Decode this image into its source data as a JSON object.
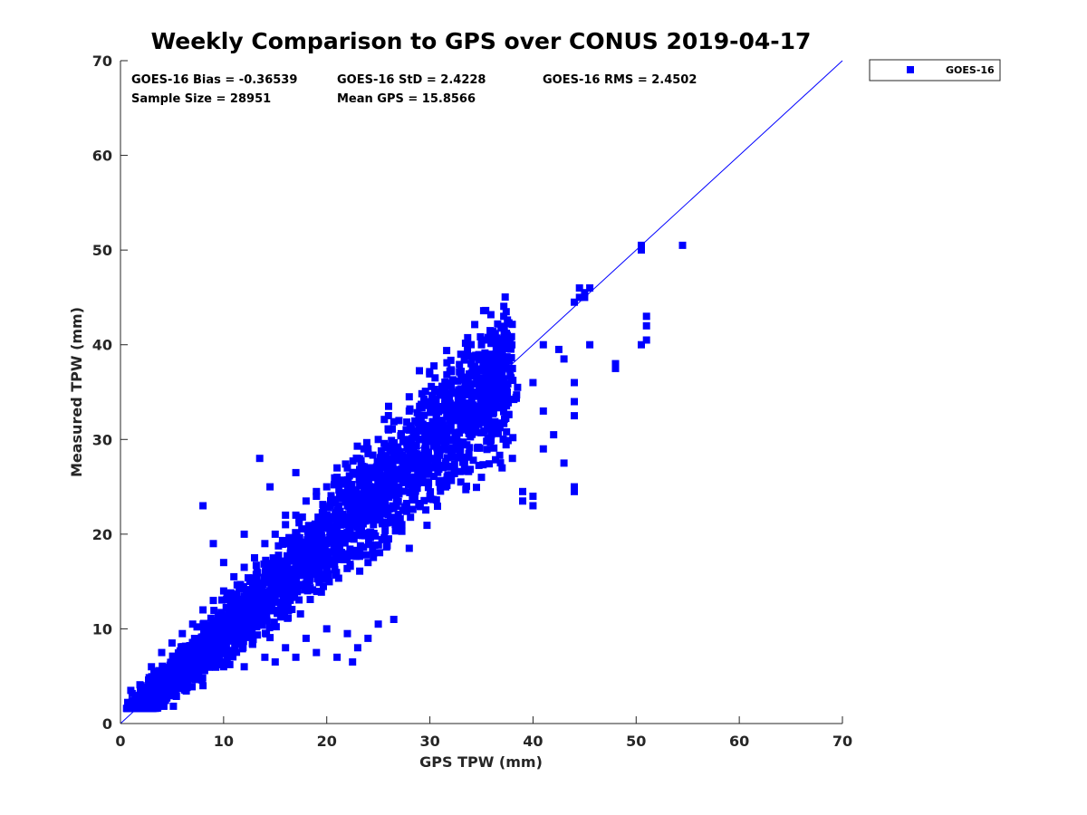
{
  "chart_data": {
    "type": "scatter",
    "title": "Weekly Comparison to GPS over CONUS 2019-04-17",
    "xlabel": "GPS TPW (mm)",
    "ylabel": "Measured TPW (mm)",
    "xlim": [
      0,
      70
    ],
    "ylim": [
      0,
      70
    ],
    "xticks": [
      0,
      10,
      20,
      30,
      40,
      50,
      60,
      70
    ],
    "yticks": [
      0,
      10,
      20,
      30,
      40,
      50,
      60,
      70
    ],
    "grid": false,
    "legend_position": "top-right outside",
    "series": [
      {
        "name": "GOES-16",
        "color": "#0000ff",
        "marker": "square",
        "points_note": "representative subset of 28951 samples",
        "points": [
          [
            1.0,
            3.5
          ],
          [
            1.5,
            2.5
          ],
          [
            2.0,
            4.0
          ],
          [
            2.5,
            3.0
          ],
          [
            3.0,
            4.5
          ],
          [
            3.5,
            3.5
          ],
          [
            4.0,
            5.0
          ],
          [
            4.5,
            4.0
          ],
          [
            5.0,
            6.0
          ],
          [
            5.5,
            5.0
          ],
          [
            6.0,
            7.0
          ],
          [
            6.5,
            6.0
          ],
          [
            7.0,
            8.0
          ],
          [
            7.5,
            7.0
          ],
          [
            8.0,
            9.0
          ],
          [
            8.5,
            8.0
          ],
          [
            9.0,
            10.0
          ],
          [
            9.5,
            9.0
          ],
          [
            10.0,
            11.0
          ],
          [
            10.5,
            10.0
          ],
          [
            11.0,
            12.0
          ],
          [
            11.5,
            11.0
          ],
          [
            12.0,
            13.0
          ],
          [
            12.5,
            12.0
          ],
          [
            13.0,
            14.0
          ],
          [
            13.5,
            13.0
          ],
          [
            14.0,
            15.0
          ],
          [
            14.5,
            14.0
          ],
          [
            15.0,
            16.0
          ],
          [
            15.5,
            15.0
          ],
          [
            16.0,
            17.0
          ],
          [
            16.5,
            16.0
          ],
          [
            17.0,
            18.0
          ],
          [
            17.5,
            17.0
          ],
          [
            18.0,
            19.0
          ],
          [
            18.5,
            18.0
          ],
          [
            19.0,
            20.0
          ],
          [
            19.5,
            19.0
          ],
          [
            20.0,
            21.0
          ],
          [
            20.5,
            20.0
          ],
          [
            21.0,
            22.0
          ],
          [
            21.5,
            21.0
          ],
          [
            22.0,
            23.0
          ],
          [
            22.5,
            22.0
          ],
          [
            23.0,
            24.0
          ],
          [
            23.5,
            23.0
          ],
          [
            24.0,
            25.0
          ],
          [
            24.5,
            24.0
          ],
          [
            25.0,
            26.0
          ],
          [
            25.5,
            25.0
          ],
          [
            26.0,
            27.0
          ],
          [
            26.5,
            26.0
          ],
          [
            27.0,
            28.0
          ],
          [
            27.5,
            27.0
          ],
          [
            28.0,
            29.0
          ],
          [
            28.5,
            28.0
          ],
          [
            29.0,
            30.0
          ],
          [
            29.5,
            29.0
          ],
          [
            30.0,
            31.0
          ],
          [
            30.5,
            30.0
          ],
          [
            31.0,
            32.0
          ],
          [
            31.5,
            31.0
          ],
          [
            32.0,
            33.0
          ],
          [
            32.5,
            32.0
          ],
          [
            33.0,
            34.0
          ],
          [
            33.5,
            33.0
          ],
          [
            34.0,
            35.0
          ],
          [
            34.5,
            33.5
          ],
          [
            35.0,
            35.0
          ],
          [
            35.5,
            34.0
          ],
          [
            36.0,
            36.0
          ],
          [
            36.5,
            34.5
          ],
          [
            37.0,
            37.0
          ],
          [
            37.5,
            35.0
          ],
          [
            38.0,
            37.5
          ],
          [
            38.5,
            35.5
          ],
          [
            2.0,
            2.0
          ],
          [
            3.0,
            2.5
          ],
          [
            4.0,
            3.5
          ],
          [
            5.0,
            4.5
          ],
          [
            6.0,
            5.0
          ],
          [
            7.0,
            6.0
          ],
          [
            8.0,
            7.0
          ],
          [
            9.0,
            8.0
          ],
          [
            10.0,
            9.0
          ],
          [
            11.0,
            10.0
          ],
          [
            12.0,
            11.0
          ],
          [
            13.0,
            12.0
          ],
          [
            14.0,
            13.0
          ],
          [
            15.0,
            14.0
          ],
          [
            16.0,
            15.0
          ],
          [
            17.0,
            16.0
          ],
          [
            18.0,
            17.0
          ],
          [
            19.0,
            18.0
          ],
          [
            20.0,
            19.0
          ],
          [
            21.0,
            20.0
          ],
          [
            22.0,
            21.0
          ],
          [
            23.0,
            22.0
          ],
          [
            24.0,
            23.0
          ],
          [
            25.0,
            24.0
          ],
          [
            26.0,
            24.5
          ],
          [
            27.0,
            25.0
          ],
          [
            28.0,
            26.0
          ],
          [
            29.0,
            27.0
          ],
          [
            30.0,
            28.0
          ],
          [
            31.0,
            29.0
          ],
          [
            32.0,
            30.0
          ],
          [
            33.0,
            31.0
          ],
          [
            34.0,
            32.0
          ],
          [
            35.0,
            32.5
          ],
          [
            36.0,
            33.0
          ],
          [
            37.0,
            33.5
          ],
          [
            3.0,
            6.0
          ],
          [
            4.0,
            7.5
          ],
          [
            5.0,
            8.5
          ],
          [
            6.0,
            9.5
          ],
          [
            7.0,
            10.5
          ],
          [
            8.0,
            12.0
          ],
          [
            9.0,
            13.0
          ],
          [
            10.0,
            14.0
          ],
          [
            11.0,
            15.5
          ],
          [
            12.0,
            16.5
          ],
          [
            13.0,
            17.5
          ],
          [
            14.0,
            19.0
          ],
          [
            15.0,
            20.0
          ],
          [
            16.0,
            21.0
          ],
          [
            17.0,
            22.0
          ],
          [
            18.0,
            23.5
          ],
          [
            19.0,
            24.0
          ],
          [
            20.0,
            25.0
          ],
          [
            21.0,
            26.0
          ],
          [
            22.0,
            27.0
          ],
          [
            23.0,
            28.0
          ],
          [
            24.0,
            29.0
          ],
          [
            25.0,
            30.0
          ],
          [
            26.0,
            31.0
          ],
          [
            27.0,
            32.0
          ],
          [
            28.0,
            33.0
          ],
          [
            29.0,
            33.5
          ],
          [
            30.0,
            34.0
          ],
          [
            31.0,
            35.0
          ],
          [
            32.0,
            36.0
          ],
          [
            33.0,
            37.0
          ],
          [
            34.0,
            38.0
          ],
          [
            35.0,
            38.5
          ],
          [
            36.0,
            39.0
          ],
          [
            37.0,
            40.0
          ],
          [
            37.5,
            41.0
          ],
          [
            33.0,
            39.0
          ],
          [
            30.5,
            36.5
          ],
          [
            8.0,
            23.0
          ],
          [
            9.0,
            19.0
          ],
          [
            10.0,
            17.0
          ],
          [
            12.0,
            20.0
          ],
          [
            13.5,
            28.0
          ],
          [
            14.5,
            25.0
          ],
          [
            16.0,
            22.0
          ],
          [
            17.0,
            26.5
          ],
          [
            19.0,
            24.5
          ],
          [
            21.0,
            27.0
          ],
          [
            24.0,
            28.5
          ],
          [
            26.0,
            33.5
          ],
          [
            28.0,
            34.5
          ],
          [
            35.0,
            40.0
          ],
          [
            36.0,
            40.5
          ],
          [
            8.0,
            4.0
          ],
          [
            10.0,
            6.0
          ],
          [
            12.0,
            6.0
          ],
          [
            14.0,
            7.0
          ],
          [
            15.0,
            6.5
          ],
          [
            16.0,
            8.0
          ],
          [
            17.0,
            7.0
          ],
          [
            18.0,
            9.0
          ],
          [
            19.0,
            7.5
          ],
          [
            20.0,
            10.0
          ],
          [
            21.0,
            7.0
          ],
          [
            22.0,
            9.5
          ],
          [
            22.5,
            6.5
          ],
          [
            23.0,
            8.0
          ],
          [
            24.0,
            9.0
          ],
          [
            25.0,
            10.5
          ],
          [
            26.5,
            11.0
          ],
          [
            24.0,
            17.0
          ],
          [
            26.0,
            19.5
          ],
          [
            28.0,
            18.5
          ],
          [
            30.0,
            24.0
          ],
          [
            31.0,
            25.0
          ],
          [
            33.0,
            25.5
          ],
          [
            35.0,
            26.0
          ],
          [
            37.0,
            27.0
          ],
          [
            38.0,
            28.0
          ],
          [
            39.0,
            24.5
          ],
          [
            40.0,
            24.0
          ],
          [
            39.0,
            23.5
          ],
          [
            40.0,
            23.0
          ],
          [
            41.0,
            29.0
          ],
          [
            42.0,
            30.5
          ],
          [
            43.0,
            27.5
          ],
          [
            44.0,
            32.5
          ],
          [
            44.0,
            34.0
          ],
          [
            44.0,
            25.0
          ],
          [
            44.0,
            24.5
          ],
          [
            41.0,
            40.0
          ],
          [
            42.5,
            39.5
          ],
          [
            43.0,
            38.5
          ],
          [
            44.0,
            36.0
          ],
          [
            40.0,
            36.0
          ],
          [
            41.0,
            33.0
          ],
          [
            45.5,
            40.0
          ],
          [
            48.0,
            38.0
          ],
          [
            48.0,
            37.5
          ],
          [
            44.0,
            44.5
          ],
          [
            44.5,
            46.0
          ],
          [
            45.0,
            45.5
          ],
          [
            45.5,
            46.0
          ],
          [
            44.5,
            45.0
          ],
          [
            45.0,
            45.0
          ],
          [
            50.5,
            40.0
          ],
          [
            51.0,
            40.5
          ],
          [
            51.0,
            42.0
          ],
          [
            51.0,
            43.0
          ],
          [
            50.5,
            50.0
          ],
          [
            50.5,
            50.5
          ],
          [
            54.5,
            50.5
          ]
        ]
      }
    ],
    "reference_line": {
      "from": [
        0,
        0
      ],
      "to": [
        70,
        70
      ],
      "color": "#0000ff"
    },
    "annotations": {
      "bias": "GOES-16 Bias = -0.36539",
      "std": "GOES-16 StD = 2.4228",
      "rms": "GOES-16 RMS = 2.4502",
      "sample_size": "Sample Size = 28951",
      "mean_gps": "Mean GPS = 15.8566"
    }
  }
}
